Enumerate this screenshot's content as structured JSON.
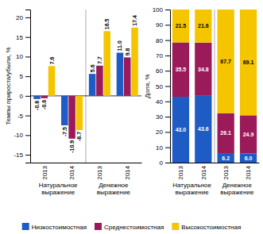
{
  "chart_data": [
    {
      "type": "bar",
      "ylabel": "Темпы прироста/убыли, %",
      "categories": [
        "2013",
        "2014",
        "2013",
        "2014"
      ],
      "category_groups": [
        "Натуральное\nвыражение",
        "Натуральное\nвыражение",
        "Денежное\nвыражение",
        "Денежное\nвыражение"
      ],
      "series": [
        {
          "name": "Низкостоимостная",
          "color": "#1F5BC4",
          "values": [
            -0.8,
            -7.5,
            5.6,
            11.0
          ],
          "value_labels": [
            "-0.8",
            "-7.5",
            "5.6",
            "11.0"
          ]
        },
        {
          "name": "Среднестоимостная",
          "color": "#9B1B5A",
          "values": [
            -0.6,
            -10.9,
            7.7,
            9.8
          ],
          "value_labels": [
            "-0.6",
            "-10.9",
            "7.7",
            "9.8"
          ]
        },
        {
          "name": "Высокостоимостная",
          "color": "#F5C500",
          "values": [
            7.6,
            -8.7,
            16.5,
            17.4
          ],
          "value_labels": [
            "7.6",
            "-8.7",
            "16.5",
            "17.4"
          ]
        }
      ],
      "ylim": [
        -17,
        22
      ],
      "yticks": [
        -15,
        -10,
        -5,
        0,
        5,
        10,
        15,
        20
      ],
      "grid": false,
      "data_labels": true,
      "legend": "bottom"
    },
    {
      "type": "bar",
      "stacked": true,
      "ylabel": "Доля, %",
      "categories": [
        "2013",
        "2014",
        "2013",
        "2014"
      ],
      "category_groups": [
        "Натуральное\nвыражение",
        "Натуральное\nвыражение",
        "Денежное\nвыражение",
        "Денежное\nвыражение"
      ],
      "series": [
        {
          "name": "Низкостоимостная",
          "color": "#1F5BC4",
          "values": [
            43.0,
            43.6,
            6.2,
            6.0
          ],
          "value_labels": [
            "43.0",
            "43.6",
            "6.2",
            "6.0"
          ]
        },
        {
          "name": "Среднестоимостная",
          "color": "#9B1B5A",
          "values": [
            35.5,
            34.8,
            26.1,
            24.9
          ],
          "value_labels": [
            "35.5",
            "34.8",
            "26.1",
            "24.9"
          ]
        },
        {
          "name": "Высокостоимостная",
          "color": "#F5C500",
          "values": [
            21.5,
            21.6,
            67.7,
            69.1
          ],
          "value_labels": [
            "21.5",
            "21.6",
            "67.7",
            "69.1"
          ]
        }
      ],
      "ylim": [
        0,
        100
      ],
      "yticks": [
        0,
        10,
        20,
        30,
        40,
        50,
        60,
        70,
        80,
        90,
        100
      ],
      "grid": false,
      "data_labels": true
    }
  ]
}
